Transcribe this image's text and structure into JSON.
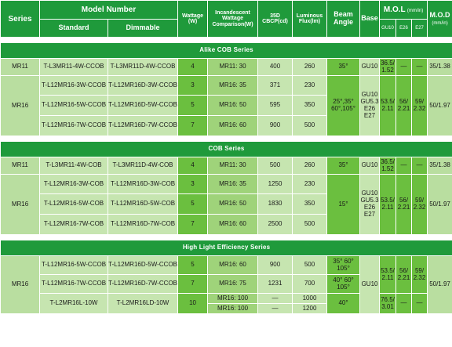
{
  "header": {
    "series": "Series",
    "model_number": "Model Number",
    "standard": "Standard",
    "dimmable": "Dimmable",
    "wattage": "Wattage (W)",
    "incandescent": "Incandescent Wattage Comparison(W)",
    "cbcp_line1": "35D",
    "cbcp_line2": "CBCP(cd)",
    "luminous": "Luminous Flux(lm)",
    "beam": "Beam Angle",
    "base": "Base",
    "mol": "M.O.L",
    "mol_unit": "(mm/in)",
    "mod": "M.O.D",
    "mod_unit": "(mm/in)",
    "gu10": "GU10",
    "e26": "E26",
    "e27": "E27"
  },
  "sections": {
    "alike_cob": "Alike COB Series",
    "cob": "COB Series",
    "high_eff": "High Light Efficiency Series"
  },
  "alike": {
    "mr11": {
      "series": "MR11",
      "standard": "T-L3MR11-4W-CCOB",
      "dimmable": "T-L3MR11D-4W-CCOB",
      "wattage": "4",
      "incandescent": "MR11: 30",
      "cbcp": "400",
      "lumen": "260",
      "beam": "35°",
      "base": "GU10",
      "mol_gu10": "36.5/ 1.52",
      "mol_e26": "—",
      "mol_e27": "—",
      "mod": "35/1.38"
    },
    "mr16": {
      "series": "MR16",
      "beam": "25°,35° 60°,105°",
      "base": "GU10 GU5.3 E26 E27",
      "mol_gu10": "53.5/ 2.11",
      "mol_e26": "56/ 2.21",
      "mol_e27": "59/ 2.32",
      "mod": "50/1.97",
      "rows": [
        {
          "standard": "T-L12MR16-3W-CCOB",
          "dimmable": "T-L12MR16D-3W-CCOB",
          "wattage": "3",
          "incandescent": "MR16: 35",
          "cbcp": "371",
          "lumen": "230"
        },
        {
          "standard": "T-L12MR16-5W-CCOB",
          "dimmable": "T-L12MR16D-5W-CCOB",
          "wattage": "5",
          "incandescent": "MR16: 50",
          "cbcp": "595",
          "lumen": "350"
        },
        {
          "standard": "T-L12MR16-7W-CCOB",
          "dimmable": "T-L12MR16D-7W-CCOB",
          "wattage": "7",
          "incandescent": "MR16: 60",
          "cbcp": "900",
          "lumen": "500"
        }
      ]
    }
  },
  "cob": {
    "mr11": {
      "series": "MR11",
      "standard": "T-L3MR11-4W-COB",
      "dimmable": "T-L3MR11D-4W-COB",
      "wattage": "4",
      "incandescent": "MR11: 30",
      "cbcp": "500",
      "lumen": "260",
      "beam": "35°",
      "base": "GU10",
      "mol_gu10": "36.5/ 1.52",
      "mol_e26": "—",
      "mol_e27": "—",
      "mod": "35/1.38"
    },
    "mr16": {
      "series": "MR16",
      "beam": "15°",
      "base": "GU10 GU5.3 E26 E27",
      "mol_gu10": "53.5/ 2.11",
      "mol_e26": "56/ 2.21",
      "mol_e27": "59/ 2.32",
      "mod": "50/1.97",
      "rows": [
        {
          "standard": "T-L12MR16-3W-COB",
          "dimmable": "T-L12MR16D-3W-COB",
          "wattage": "3",
          "incandescent": "MR16: 35",
          "cbcp": "1250",
          "lumen": "230"
        },
        {
          "standard": "T-L12MR16-5W-COB",
          "dimmable": "T-L12MR16D-5W-COB",
          "wattage": "5",
          "incandescent": "MR16: 50",
          "cbcp": "1830",
          "lumen": "350"
        },
        {
          "standard": "T-L12MR16-7W-COB",
          "dimmable": "T-L12MR16D-7W-COB",
          "wattage": "7",
          "incandescent": "MR16: 60",
          "cbcp": "2500",
          "lumen": "500"
        }
      ]
    }
  },
  "high": {
    "series": "MR16",
    "base": "GU10",
    "mol_gu10": "53.5/ 2.11",
    "mol_e26": "56/ 2.21",
    "mol_e27": "59/ 2.32",
    "mol_gu10_10w": "76.5/ 3.01",
    "mol_dash_e26": "—",
    "mol_dash_e27": "—",
    "mod": "50/1.97",
    "rows": [
      {
        "standard": "T-L12MR16-5W-CCOB",
        "dimmable": "T-L12MR16D-5W-CCOB",
        "wattage": "5",
        "incandescent": "MR16: 60",
        "cbcp": "900",
        "lumen": "500",
        "beam": "35° 60° 105°"
      },
      {
        "standard": "T-L12MR16-7W-CCOB",
        "dimmable": "T-L12MR16D-7W-CCOB",
        "wattage": "7",
        "incandescent": "MR16: 75",
        "cbcp": "1231",
        "lumen": "700",
        "beam": "40° 60° 105°"
      },
      {
        "standard": "T-L2MR16L-10W",
        "dimmable": "T-L2MR16LD-10W",
        "wattage": "10",
        "incandescent": "MR16: 100",
        "cbcp": "—",
        "lumen": "1000",
        "beam": "40°"
      },
      {
        "incandescent": "MR16: 100",
        "cbcp": "—",
        "lumen": "1200"
      }
    ]
  }
}
